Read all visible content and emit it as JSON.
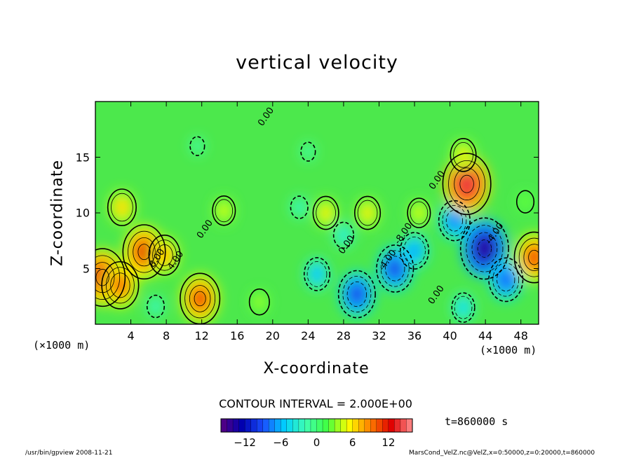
{
  "chart_data": {
    "type": "heatmap",
    "title": "vertical velocity",
    "xlabel": "X-coordinate",
    "ylabel": "Z-coordinate",
    "x_unit_label": "(×1000 m)",
    "y_unit_label": "(×1000 m)",
    "xlim": [
      0,
      50
    ],
    "ylim": [
      0,
      20
    ],
    "xticks": [
      4,
      8,
      12,
      16,
      20,
      24,
      28,
      32,
      36,
      40,
      44,
      48
    ],
    "yticks": [
      5,
      10,
      15
    ],
    "contour_interval_label": "CONTOUR INTERVAL = 2.000E+00",
    "time_label": "t=860000 s",
    "colorbar": {
      "range": [
        -16,
        16
      ],
      "ticks": [
        -12,
        -6,
        0,
        6,
        12
      ],
      "colormap": [
        "#5a0080",
        "#0000b0",
        "#1a50ff",
        "#00d0ff",
        "#40ffb0",
        "#40ff40",
        "#ffff00",
        "#ff8000",
        "#e00000",
        "#ff9090"
      ]
    },
    "contour_labels": [
      {
        "x": 19.5,
        "z": 18.5,
        "text": "0.00"
      },
      {
        "x": 7.2,
        "z": 5.8,
        "text": "8.00"
      },
      {
        "x": 9.3,
        "z": 5.6,
        "text": "4.00"
      },
      {
        "x": 12.6,
        "z": 8.4,
        "text": "0.00"
      },
      {
        "x": 28.6,
        "z": 7.0,
        "text": "0.00"
      },
      {
        "x": 33.2,
        "z": 5.6,
        "text": "-4.00"
      },
      {
        "x": 35.0,
        "z": 8.0,
        "text": "-8.00"
      },
      {
        "x": 38.8,
        "z": 12.8,
        "text": "0.00"
      },
      {
        "x": 45.3,
        "z": 8.0,
        "text": "-4.00"
      },
      {
        "x": 38.7,
        "z": 2.5,
        "text": "0.00"
      }
    ],
    "features": [
      {
        "x": 0.8,
        "z": 4.2,
        "value": 13
      },
      {
        "x": 2.8,
        "z": 3.5,
        "value": 10
      },
      {
        "x": 5.5,
        "z": 6.5,
        "value": 12
      },
      {
        "x": 7.8,
        "z": 6.2,
        "value": 8
      },
      {
        "x": 11.8,
        "z": 2.3,
        "value": 11
      },
      {
        "x": 14.5,
        "z": 10.2,
        "value": 5
      },
      {
        "x": 3.0,
        "z": 10.5,
        "value": 7
      },
      {
        "x": 18.5,
        "z": 2.0,
        "value": 4
      },
      {
        "x": 6.8,
        "z": 1.6,
        "value": -3
      },
      {
        "x": 25.0,
        "z": 4.5,
        "value": -6
      },
      {
        "x": 29.5,
        "z": 2.7,
        "value": -10
      },
      {
        "x": 33.8,
        "z": 5.0,
        "value": -10
      },
      {
        "x": 36.0,
        "z": 6.6,
        "value": -7
      },
      {
        "x": 40.5,
        "z": 9.3,
        "value": -8
      },
      {
        "x": 43.9,
        "z": 6.8,
        "value": -14
      },
      {
        "x": 46.3,
        "z": 4.0,
        "value": -9
      },
      {
        "x": 41.5,
        "z": 1.5,
        "value": -5
      },
      {
        "x": 41.9,
        "z": 12.6,
        "value": 14
      },
      {
        "x": 41.5,
        "z": 15.2,
        "value": 6
      },
      {
        "x": 30.7,
        "z": 10.0,
        "value": 6
      },
      {
        "x": 26.0,
        "z": 10.0,
        "value": 6
      },
      {
        "x": 36.5,
        "z": 10.0,
        "value": 5
      },
      {
        "x": 49.5,
        "z": 6.0,
        "value": 11
      },
      {
        "x": 48.5,
        "z": 11.0,
        "value": 3
      },
      {
        "x": 28.0,
        "z": 8.0,
        "value": -4
      },
      {
        "x": 23.0,
        "z": 10.5,
        "value": -3
      },
      {
        "x": 11.5,
        "z": 16.0,
        "value": -2
      },
      {
        "x": 24.0,
        "z": 15.5,
        "value": -2
      }
    ]
  },
  "footer": {
    "left": "/usr/bin/gpview   2008-11-21",
    "right": "MarsCond_VelZ.nc@VelZ,x=0:50000,z=0:20000,t=860000"
  }
}
